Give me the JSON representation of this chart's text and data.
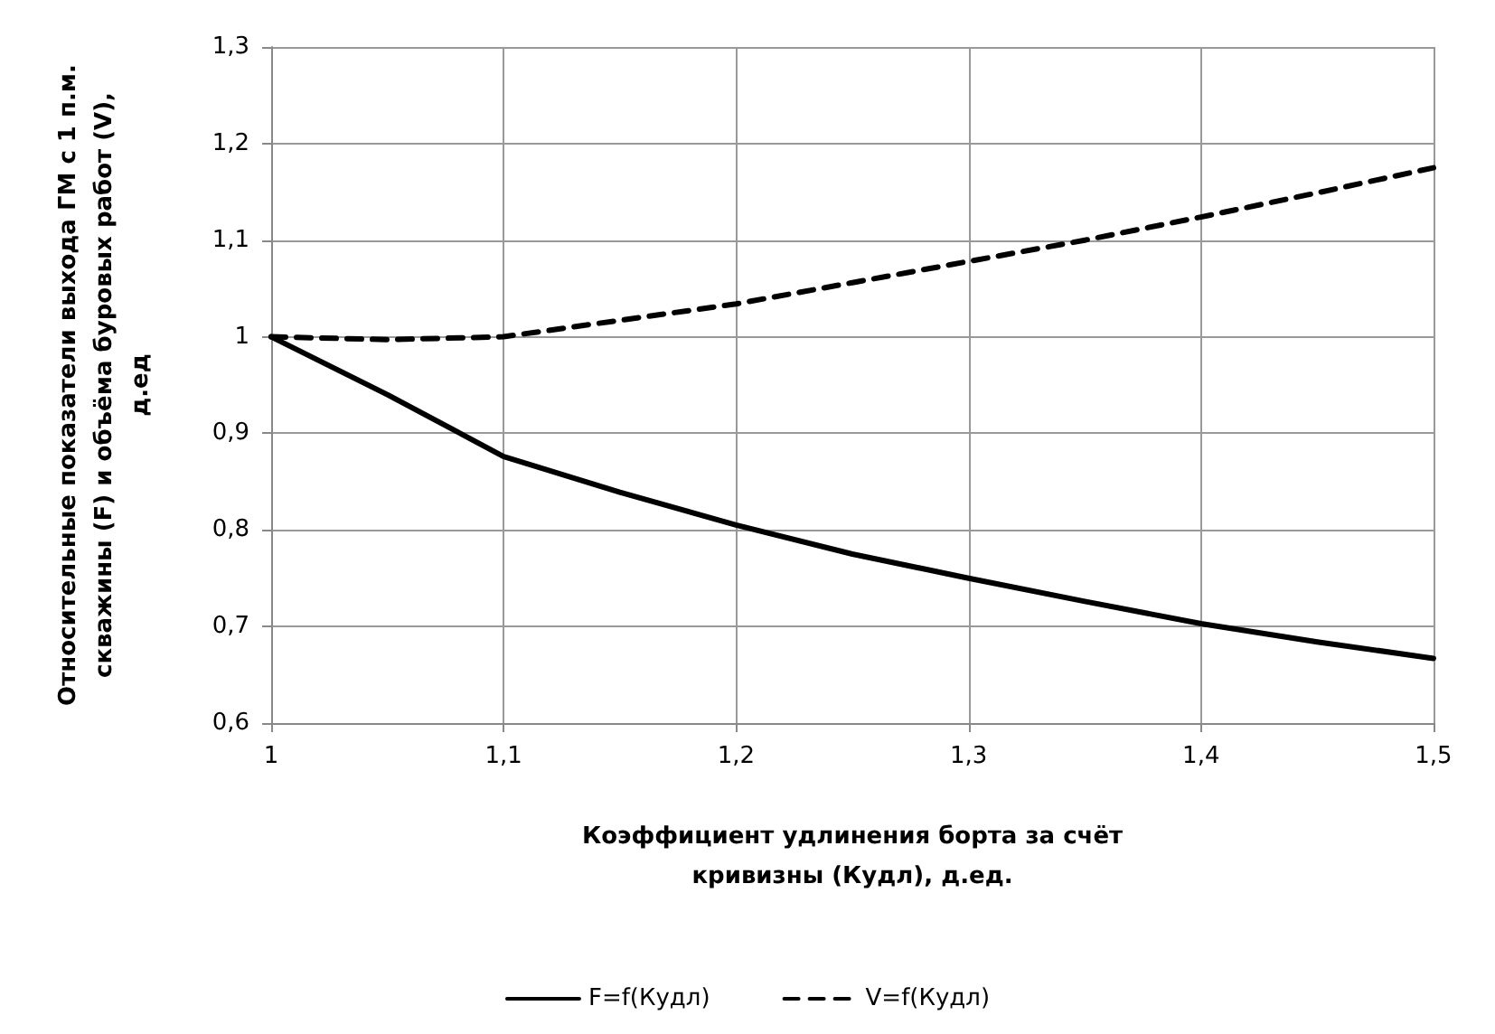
{
  "chart_data": {
    "type": "line",
    "xlabel": "Коэффициент удлинения борта за счёт кривизны (Кудл), д.ед.",
    "ylabel": "Относительные показатели выхода ГМ с 1 п.м. скважины (F) и объёма буровых работ (V), д.ед",
    "x": [
      1,
      1.05,
      1.1,
      1.15,
      1.2,
      1.25,
      1.3,
      1.35,
      1.4,
      1.45,
      1.5
    ],
    "series": [
      {
        "name": "F=f(Кудл)",
        "color": "#000000",
        "line_style": "solid",
        "values": [
          1.0,
          0.94,
          0.876,
          0.839,
          0.805,
          0.775,
          0.75,
          0.726,
          0.703,
          0.684,
          0.667
        ]
      },
      {
        "name": "V=f(Кудл)",
        "color": "#000000",
        "line_style": "dashed",
        "values": [
          1.0,
          0.997,
          1.0,
          1.017,
          1.034,
          1.056,
          1.078,
          1.1,
          1.124,
          1.149,
          1.175
        ]
      }
    ],
    "xlim": [
      1,
      1.5
    ],
    "xticks": [
      1,
      {
        "value": 1.1,
        "label": "1,1"
      },
      {
        "value": 1.2,
        "label": "1,2"
      },
      {
        "value": 1.3,
        "label": "1,3"
      },
      {
        "value": 1.4,
        "label": "1,4"
      },
      {
        "value": 1.5,
        "label": "1,5"
      }
    ],
    "ylim": [
      0.6,
      1.3
    ],
    "yticks": [
      {
        "value": 0.6,
        "label": "0,6"
      },
      {
        "value": 0.7,
        "label": "0,7"
      },
      {
        "value": 0.8,
        "label": "0,8"
      },
      {
        "value": 0.9,
        "label": "0,9"
      },
      1,
      {
        "value": 1.1,
        "label": "1,1"
      },
      {
        "value": 1.2,
        "label": "1,2"
      },
      {
        "value": 1.3,
        "label": "1,3"
      }
    ],
    "grid": true,
    "legend": "bottom",
    "marker": "none"
  }
}
